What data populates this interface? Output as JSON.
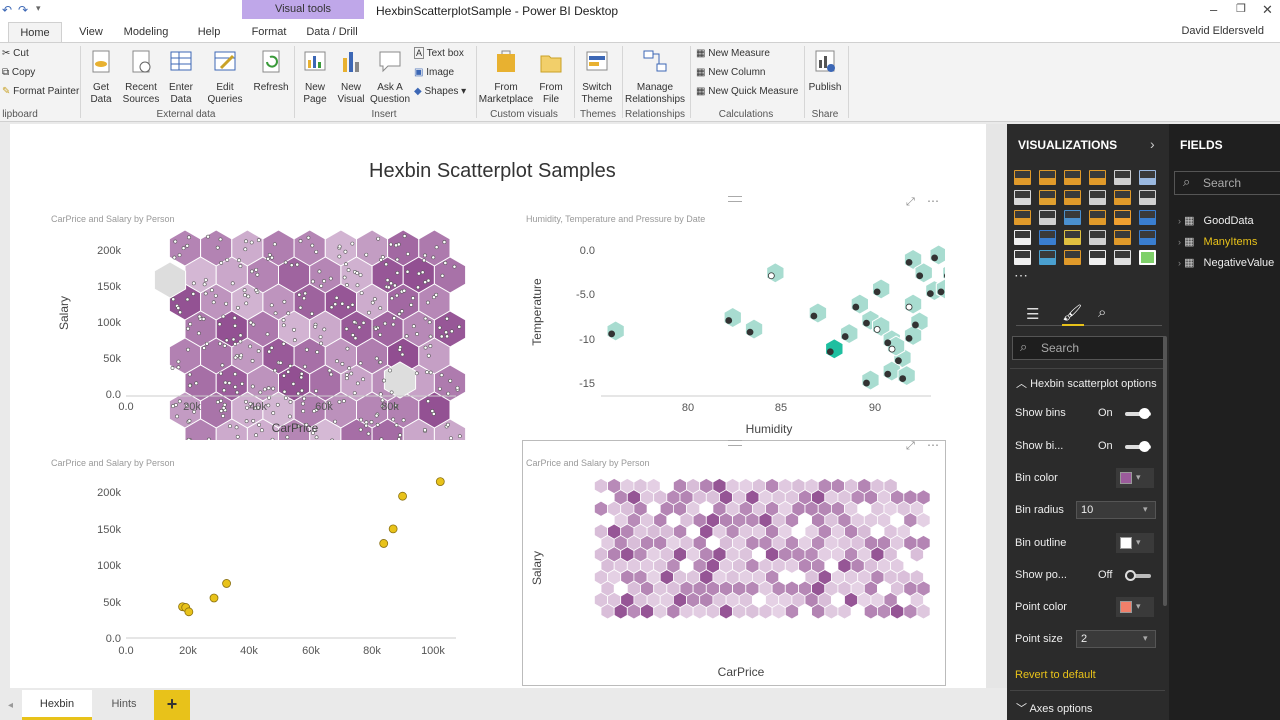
{
  "window": {
    "title": "HexbinScatterplotSample - Power BI Desktop",
    "context_tab": "Visual tools",
    "user": "David Eldersveld"
  },
  "tabs": [
    {
      "label": "Home"
    },
    {
      "label": "View"
    },
    {
      "label": "Modeling"
    },
    {
      "label": "Help"
    },
    {
      "label": "Format"
    },
    {
      "label": "Data / Drill"
    }
  ],
  "ribbon": {
    "clipboard": {
      "cut": "Cut",
      "copy": "Copy",
      "format_painter": "Format Painter",
      "group": "lipboard"
    },
    "external": {
      "get_data": "Get\nData",
      "recent_sources": "Recent\nSources",
      "enter_data": "Enter\nData",
      "edit_queries": "Edit\nQueries",
      "refresh": "Refresh",
      "group": "External data"
    },
    "insert": {
      "new_page": "New\nPage",
      "new_visual": "New\nVisual",
      "ask": "Ask A\nQuestion",
      "text_box": "Text box",
      "image": "Image",
      "shapes": "Shapes",
      "group": "Insert"
    },
    "custom": {
      "from_marketplace": "From\nMarketplace",
      "from_file": "From\nFile",
      "group": "Custom visuals"
    },
    "themes": {
      "switch": "Switch\nTheme",
      "group": "Themes"
    },
    "relationships": {
      "manage": "Manage\nRelationships",
      "group": "Relationships"
    },
    "calculations": {
      "new_measure": "New Measure",
      "new_column": "New Column",
      "new_quick": "New Quick Measure",
      "group": "Calculations"
    },
    "share": {
      "publish": "Publish",
      "group": "Share"
    }
  },
  "report": {
    "title": "Hexbin Scatterplot Samples"
  },
  "charts": {
    "c1": {
      "subtitle": "CarPrice and Salary by Person",
      "xlabel": "CarPrice",
      "ylabel": "Salary",
      "xticks": [
        "0.0",
        "20k",
        "40k",
        "60k",
        "80k"
      ],
      "yticks": [
        "200k",
        "150k",
        "100k",
        "50k",
        "0.0"
      ]
    },
    "c2": {
      "subtitle": "Humidity, Temperature and Pressure by Date",
      "xlabel": "Humidity",
      "ylabel": "Temperature",
      "xticks": [
        "80",
        "85",
        "90"
      ],
      "yticks": [
        "0.0",
        "-5.0",
        "-10",
        "-15"
      ]
    },
    "c3": {
      "subtitle": "CarPrice and Salary by Person",
      "xlabel": "",
      "ylabel": "",
      "xticks": [
        "0.0",
        "20k",
        "40k",
        "60k",
        "80k",
        "100k"
      ],
      "yticks": [
        "200k",
        "150k",
        "100k",
        "50k",
        "0.0"
      ]
    },
    "c4": {
      "subtitle": "CarPrice and Salary by Person",
      "xlabel": "CarPrice",
      "ylabel": "Salary"
    }
  },
  "chart_data": [
    {
      "type": "scatter",
      "title": "CarPrice and Salary by Person",
      "xlabel": "CarPrice",
      "ylabel": "Salary",
      "xlim": [
        0,
        100000
      ],
      "ylim": [
        0,
        220000
      ],
      "hexbin": true,
      "bin_color": "#9b5b9b"
    },
    {
      "type": "scatter",
      "title": "Humidity, Temperature and Pressure by Date",
      "xlabel": "Humidity",
      "ylabel": "Temperature",
      "xlim": [
        76,
        91.5
      ],
      "ylim": [
        -16,
        1
      ],
      "hexbin": true,
      "bin_color": "#3fbfa8",
      "points": [
        [
          76.5,
          -9.5
        ],
        [
          82,
          -8
        ],
        [
          83,
          -9.3
        ],
        [
          84,
          -3
        ],
        [
          86,
          -7.5
        ],
        [
          87,
          -9.8
        ],
        [
          87.5,
          -6.5
        ],
        [
          88,
          -15
        ],
        [
          88.5,
          -4.8
        ],
        [
          88,
          -8.3
        ],
        [
          88.5,
          -9
        ],
        [
          89,
          -10.5
        ],
        [
          89.5,
          -12.5
        ],
        [
          89,
          -14
        ],
        [
          90,
          -1.5
        ],
        [
          90.5,
          -3
        ],
        [
          91,
          -5
        ],
        [
          90,
          -6.5
        ],
        [
          91.5,
          -4.8
        ],
        [
          91.8,
          -3
        ],
        [
          91.2,
          -1
        ],
        [
          90.3,
          -8.5
        ],
        [
          90,
          -10
        ],
        [
          89.7,
          -14.5
        ],
        [
          89.2,
          -11.2
        ],
        [
          86.3,
          -11.5
        ]
      ]
    },
    {
      "type": "scatter",
      "title": "CarPrice and Salary by Person",
      "xlabel": "",
      "ylabel": "",
      "xlim": [
        0,
        105000
      ],
      "ylim": [
        0,
        220000
      ],
      "color": "#e8c21a",
      "points": [
        [
          18000,
          43000
        ],
        [
          19000,
          42000
        ],
        [
          20000,
          36000
        ],
        [
          28000,
          55000
        ],
        [
          32000,
          75000
        ],
        [
          82000,
          130000
        ],
        [
          85000,
          150000
        ],
        [
          88000,
          195000
        ],
        [
          100000,
          215000
        ]
      ]
    },
    {
      "type": "scatter",
      "title": "CarPrice and Salary by Person",
      "xlabel": "CarPrice",
      "ylabel": "Salary",
      "hexbin": true,
      "bin_color": "#9b5b9b"
    }
  ],
  "visualizations": {
    "title": "VISUALIZATIONS",
    "search": "Search",
    "section": "Hexbin scatterplot options",
    "show_bins": {
      "label": "Show bins",
      "value": "On"
    },
    "show_bin_outline": {
      "label": "Show bi...",
      "value": "On"
    },
    "bin_color": {
      "label": "Bin color",
      "color": "#9b5b9b"
    },
    "bin_radius": {
      "label": "Bin radius",
      "value": "10"
    },
    "bin_outline": {
      "label": "Bin outline",
      "color": "#ffffff"
    },
    "show_points": {
      "label": "Show po...",
      "value": "Off"
    },
    "point_color": {
      "label": "Point color",
      "color": "#f07f6a"
    },
    "point_size": {
      "label": "Point size",
      "value": "2"
    },
    "revert": "Revert to default",
    "axes": "Axes options"
  },
  "fields": {
    "title": "FIELDS",
    "search": "Search",
    "items": [
      {
        "label": "GoodData"
      },
      {
        "label": "ManyItems"
      },
      {
        "label": "NegativeValue"
      }
    ]
  },
  "pages": {
    "tabs": [
      {
        "label": "Hexbin"
      },
      {
        "label": "Hints"
      }
    ],
    "add": "+"
  }
}
